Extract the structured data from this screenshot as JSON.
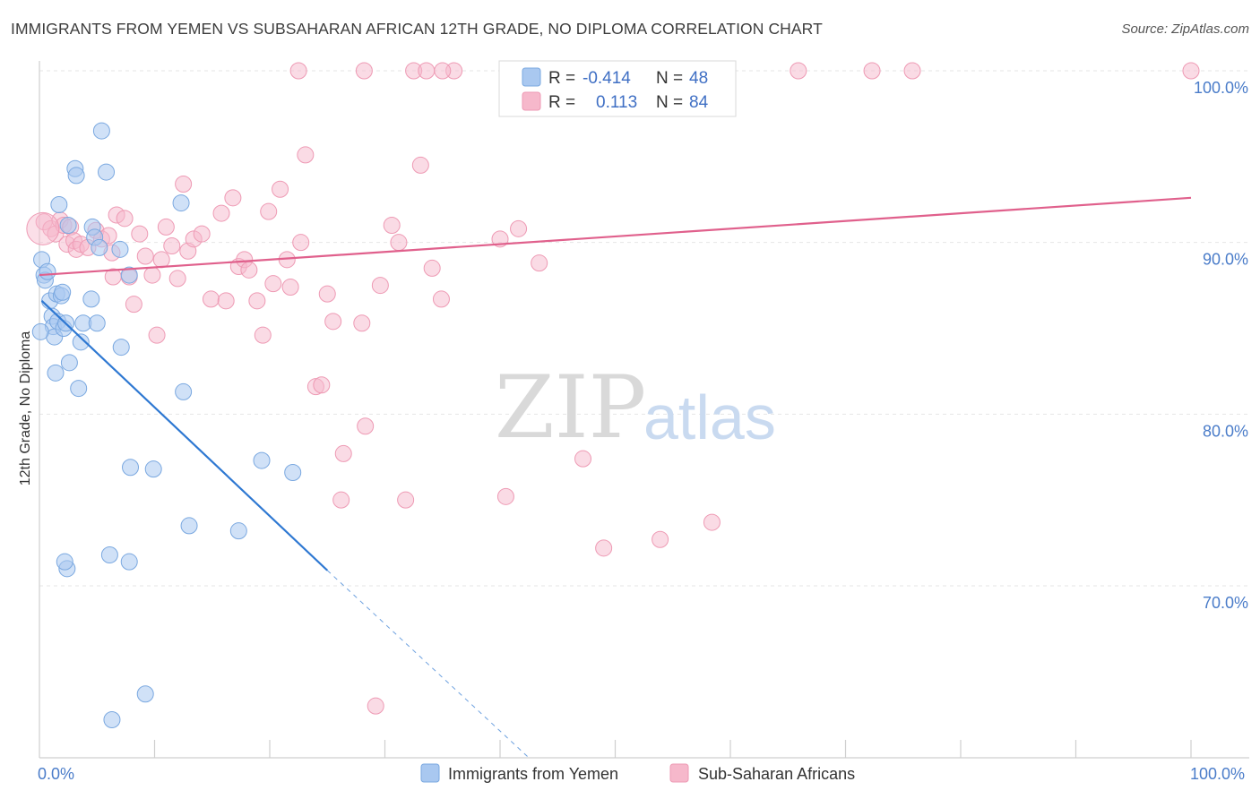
{
  "header": {
    "title": "IMMIGRANTS FROM YEMEN VS SUBSAHARAN AFRICAN 12TH GRADE, NO DIPLOMA CORRELATION CHART",
    "source": "Source: ZipAtlas.com"
  },
  "watermark": {
    "zip": "ZIP",
    "atlas": "atlas"
  },
  "legend": {
    "r_label": "R =",
    "n_label": "N =",
    "rows": [
      {
        "r": "-0.414",
        "n": "48"
      },
      {
        "r": "0.113",
        "n": "84"
      }
    ]
  },
  "bottom_legend": [
    "Immigrants from Yemen",
    "Sub-Saharan Africans"
  ],
  "colors": {
    "blue_fill": "#a9c8f0",
    "blue_stroke": "#7aa8e0",
    "blue_line": "#2e78d2",
    "pink_fill": "#f6b8cb",
    "pink_stroke": "#ee9ab4",
    "pink_line": "#e0608c"
  },
  "chart_data": {
    "type": "scatter",
    "title": "IMMIGRANTS FROM YEMEN VS SUBSAHARAN AFRICAN 12TH GRADE, NO DIPLOMA CORRELATION CHART",
    "xlabel": "",
    "ylabel": "12th Grade, No Diploma",
    "xlim": [
      0,
      100
    ],
    "ylim": [
      60.5,
      101.5
    ],
    "x_tick_labels": [
      "0.0%",
      "100.0%"
    ],
    "y_ticks": [
      {
        "value": 100,
        "label": "100.0%"
      },
      {
        "value": 90,
        "label": "90.0%"
      },
      {
        "value": 80,
        "label": "80.0%"
      },
      {
        "value": 70,
        "label": "70.0%"
      }
    ],
    "grid": true,
    "legend_position": "top-center",
    "series": [
      {
        "name": "Immigrants from Yemen",
        "R": -0.414,
        "N": 48,
        "trend": {
          "x0": 0.2,
          "y0": 86.6,
          "x1": 25.0,
          "y1": 70.9,
          "dashed_to_x": 42.5
        },
        "points": [
          [
            0.2,
            89.0
          ],
          [
            0.4,
            88.1
          ],
          [
            0.5,
            87.8
          ],
          [
            0.7,
            88.3
          ],
          [
            0.9,
            86.6
          ],
          [
            1.1,
            85.7
          ],
          [
            1.2,
            85.1
          ],
          [
            1.3,
            84.5
          ],
          [
            1.5,
            87.0
          ],
          [
            1.6,
            85.4
          ],
          [
            1.7,
            92.2
          ],
          [
            1.9,
            86.9
          ],
          [
            2.0,
            87.1
          ],
          [
            2.1,
            85.0
          ],
          [
            2.3,
            85.3
          ],
          [
            2.6,
            83.0
          ],
          [
            2.5,
            91.0
          ],
          [
            1.4,
            82.4
          ],
          [
            2.4,
            71.0
          ],
          [
            2.2,
            71.4
          ],
          [
            3.1,
            94.3
          ],
          [
            3.4,
            81.5
          ],
          [
            3.2,
            93.9
          ],
          [
            3.6,
            84.2
          ],
          [
            3.8,
            85.3
          ],
          [
            4.5,
            86.7
          ],
          [
            4.6,
            90.9
          ],
          [
            4.8,
            90.3
          ],
          [
            5.0,
            85.3
          ],
          [
            5.2,
            89.7
          ],
          [
            5.4,
            96.5
          ],
          [
            5.8,
            94.1
          ],
          [
            6.1,
            71.8
          ],
          [
            6.3,
            62.2
          ],
          [
            7.0,
            89.6
          ],
          [
            7.1,
            83.9
          ],
          [
            7.9,
            76.9
          ],
          [
            7.8,
            71.4
          ],
          [
            7.8,
            88.1
          ],
          [
            9.2,
            63.7
          ],
          [
            9.9,
            76.8
          ],
          [
            12.3,
            92.3
          ],
          [
            12.5,
            81.3
          ],
          [
            13.0,
            73.5
          ],
          [
            17.3,
            73.2
          ],
          [
            19.3,
            77.3
          ],
          [
            22.0,
            76.6
          ],
          [
            0.1,
            84.8
          ]
        ]
      },
      {
        "name": "Sub-Saharan Africans",
        "R": 0.113,
        "N": 84,
        "trend": {
          "x0": 0.0,
          "y0": 88.1,
          "x1": 100.0,
          "y1": 92.6
        },
        "points": [
          [
            0.4,
            91.2
          ],
          [
            1.0,
            90.8
          ],
          [
            1.4,
            90.5
          ],
          [
            1.8,
            91.3
          ],
          [
            2.1,
            91.0
          ],
          [
            2.4,
            89.9
          ],
          [
            2.7,
            90.9
          ],
          [
            3.0,
            90.1
          ],
          [
            3.2,
            89.6
          ],
          [
            3.6,
            89.9
          ],
          [
            4.2,
            89.7
          ],
          [
            4.9,
            90.7
          ],
          [
            5.4,
            90.2
          ],
          [
            6.0,
            90.4
          ],
          [
            6.3,
            89.4
          ],
          [
            6.4,
            88.0
          ],
          [
            6.7,
            91.6
          ],
          [
            7.4,
            91.4
          ],
          [
            7.8,
            88.0
          ],
          [
            8.2,
            86.4
          ],
          [
            8.7,
            90.5
          ],
          [
            9.2,
            89.2
          ],
          [
            9.8,
            88.1
          ],
          [
            10.2,
            84.6
          ],
          [
            10.6,
            89.0
          ],
          [
            11.0,
            90.9
          ],
          [
            11.5,
            89.8
          ],
          [
            12.0,
            87.9
          ],
          [
            12.5,
            93.4
          ],
          [
            12.9,
            89.5
          ],
          [
            13.4,
            90.2
          ],
          [
            14.1,
            90.5
          ],
          [
            14.9,
            86.7
          ],
          [
            15.8,
            91.7
          ],
          [
            16.2,
            86.6
          ],
          [
            16.8,
            92.6
          ],
          [
            17.3,
            88.6
          ],
          [
            17.8,
            89.0
          ],
          [
            18.2,
            88.4
          ],
          [
            18.9,
            86.6
          ],
          [
            19.4,
            84.6
          ],
          [
            19.9,
            91.8
          ],
          [
            20.3,
            87.6
          ],
          [
            20.9,
            93.1
          ],
          [
            21.5,
            89.0
          ],
          [
            21.8,
            87.4
          ],
          [
            22.7,
            90.0
          ],
          [
            23.1,
            95.1
          ],
          [
            24.0,
            81.6
          ],
          [
            24.5,
            81.7
          ],
          [
            25.0,
            87.0
          ],
          [
            25.5,
            85.4
          ],
          [
            26.2,
            75.0
          ],
          [
            26.4,
            77.7
          ],
          [
            28.0,
            85.3
          ],
          [
            28.3,
            79.3
          ],
          [
            29.2,
            63.0
          ],
          [
            29.6,
            87.5
          ],
          [
            30.6,
            91.0
          ],
          [
            31.2,
            90.0
          ],
          [
            31.8,
            75.0
          ],
          [
            33.1,
            94.5
          ],
          [
            34.1,
            88.5
          ],
          [
            34.9,
            86.7
          ],
          [
            36.0,
            100.0
          ],
          [
            40.0,
            90.2
          ],
          [
            40.5,
            75.2
          ],
          [
            41.6,
            90.8
          ],
          [
            43.4,
            88.8
          ],
          [
            47.2,
            77.4
          ],
          [
            49.0,
            72.2
          ],
          [
            53.9,
            72.7
          ],
          [
            58.4,
            73.7
          ],
          [
            22.5,
            100.0
          ],
          [
            28.2,
            100.0
          ],
          [
            32.5,
            100.0
          ],
          [
            33.6,
            100.0
          ],
          [
            35.0,
            100.0
          ],
          [
            48.0,
            100.0
          ],
          [
            55.4,
            100.0
          ],
          [
            65.9,
            100.0
          ],
          [
            72.3,
            100.0
          ],
          [
            75.8,
            100.0
          ],
          [
            100.0,
            100.0
          ]
        ]
      }
    ]
  }
}
